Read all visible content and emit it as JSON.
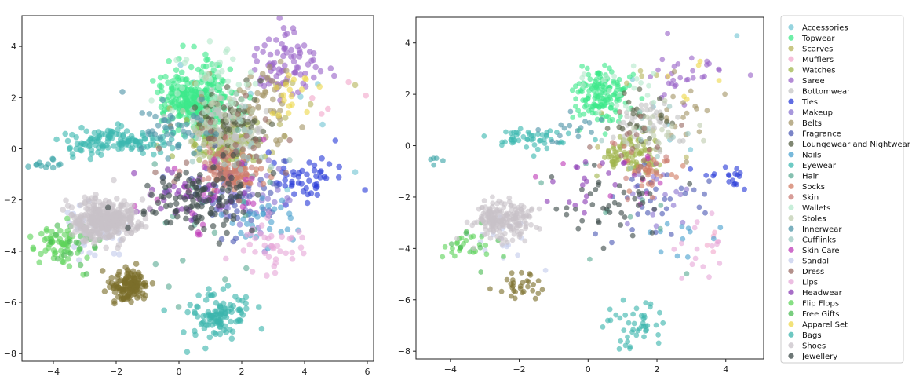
{
  "chart_data": [
    {
      "type": "scatter",
      "title": "",
      "xlabel": "",
      "ylabel": "",
      "xlim": [
        -5,
        6.2
      ],
      "ylim": [
        -8.3,
        5.2
      ],
      "xticks": [
        -4,
        -2,
        0,
        2,
        4,
        6
      ],
      "yticks": [
        -8,
        -6,
        -4,
        -2,
        0,
        2,
        4
      ],
      "grid": false,
      "legend": "none",
      "series": [
        {
          "name": "Accessories",
          "color": "#73c5d4",
          "clusters": [
            {
              "x": 2.5,
              "y": 0.5,
              "sx": 1.6,
              "sy": 1.8,
              "n": 12
            }
          ]
        },
        {
          "name": "Topwear",
          "color": "#3de88a",
          "clusters": [
            {
              "x": 0.6,
              "y": 1.9,
              "sx": 0.55,
              "sy": 0.65,
              "n": 320
            }
          ]
        },
        {
          "name": "Scarves",
          "color": "#b7b45e",
          "clusters": [
            {
              "x": 2.0,
              "y": 1.0,
              "sx": 1.4,
              "sy": 1.4,
              "n": 18
            }
          ]
        },
        {
          "name": "Mufflers",
          "color": "#f2a8cc",
          "clusters": [
            {
              "x": 5.0,
              "y": 2.2,
              "sx": 0.5,
              "sy": 0.5,
              "n": 5
            }
          ]
        },
        {
          "name": "Watches",
          "color": "#a0b54c",
          "clusters": [
            {
              "x": 1.4,
              "y": 0.3,
              "sx": 0.45,
              "sy": 0.45,
              "n": 160
            }
          ]
        },
        {
          "name": "Saree",
          "color": "#9a64c8",
          "clusters": [
            {
              "x": 3.4,
              "y": 3.4,
              "sx": 0.5,
              "sy": 0.6,
              "n": 80
            }
          ]
        },
        {
          "name": "Bottomwear",
          "color": "#c4c4c4",
          "clusters": [
            {
              "x": 1.5,
              "y": 1.0,
              "sx": 0.6,
              "sy": 0.6,
              "n": 120
            }
          ]
        },
        {
          "name": "Ties",
          "color": "#2a3bd8",
          "clusters": [
            {
              "x": 3.9,
              "y": -1.2,
              "sx": 0.6,
              "sy": 0.45,
              "n": 50
            }
          ]
        },
        {
          "name": "Makeup",
          "color": "#8a74d0",
          "clusters": [
            {
              "x": 2.2,
              "y": -1.9,
              "sx": 0.7,
              "sy": 0.7,
              "n": 40
            }
          ]
        },
        {
          "name": "Belts",
          "color": "#a49668",
          "clusters": [
            {
              "x": 2.8,
              "y": 1.8,
              "sx": 0.8,
              "sy": 0.8,
              "n": 50
            }
          ]
        },
        {
          "name": "Fragrance",
          "color": "#4d5bb4",
          "clusters": [
            {
              "x": 1.9,
              "y": -1.8,
              "sx": 0.8,
              "sy": 0.8,
              "n": 60
            }
          ]
        },
        {
          "name": "Loungewear and Nightwear",
          "color": "#555f43",
          "clusters": [
            {
              "x": 1.6,
              "y": 1.3,
              "sx": 0.6,
              "sy": 0.7,
              "n": 60
            }
          ]
        },
        {
          "name": "Nails",
          "color": "#4aa2cf",
          "clusters": [
            {
              "x": 2.6,
              "y": -2.9,
              "sx": 0.5,
              "sy": 0.5,
              "n": 30
            }
          ]
        },
        {
          "name": "Eyewear",
          "color": "#3cb8b0",
          "clusters": [
            {
              "x": -2.0,
              "y": 0.3,
              "sx": 0.9,
              "sy": 0.25,
              "n": 130
            }
          ]
        },
        {
          "name": "Hair",
          "color": "#5cab95",
          "clusters": [
            {
              "x": 0.6,
              "y": -3.0,
              "sx": 1.3,
              "sy": 1.3,
              "n": 22
            }
          ]
        },
        {
          "name": "Socks",
          "color": "#d17c64",
          "clusters": [
            {
              "x": 1.8,
              "y": -1.0,
              "sx": 0.4,
              "sy": 0.35,
              "n": 70
            }
          ]
        },
        {
          "name": "Skin",
          "color": "#c97c76",
          "clusters": [
            {
              "x": 1.5,
              "y": -0.6,
              "sx": 0.5,
              "sy": 0.5,
              "n": 40
            }
          ]
        },
        {
          "name": "Wallets",
          "color": "#b4e8cc",
          "clusters": [
            {
              "x": 1.2,
              "y": 2.4,
              "sx": 0.7,
              "sy": 0.7,
              "n": 40
            }
          ]
        },
        {
          "name": "Stoles",
          "color": "#c0cdb0",
          "clusters": [
            {
              "x": 1.6,
              "y": 0.8,
              "sx": 0.7,
              "sy": 0.7,
              "n": 40
            }
          ]
        },
        {
          "name": "Innerwear",
          "color": "#4f95a8",
          "clusters": [
            {
              "x": -0.3,
              "y": 0.9,
              "sx": 0.7,
              "sy": 0.5,
              "n": 40
            }
          ]
        },
        {
          "name": "Cufflinks",
          "color": "#9cc8c2",
          "clusters": [
            {
              "x": 2.1,
              "y": 0.0,
              "sx": 0.8,
              "sy": 0.8,
              "n": 20
            }
          ]
        },
        {
          "name": "Skin Care",
          "color": "#be3cb8",
          "clusters": [
            {
              "x": 1.0,
              "y": -1.5,
              "sx": 1.0,
              "sy": 0.8,
              "n": 25
            }
          ]
        },
        {
          "name": "Sandal",
          "color": "#c4ccec",
          "clusters": [
            {
              "x": -2.8,
              "y": -3.2,
              "sx": 0.6,
              "sy": 0.5,
              "n": 40
            }
          ]
        },
        {
          "name": "Dress",
          "color": "#9a6b64",
          "clusters": [
            {
              "x": 1.6,
              "y": 0.2,
              "sx": 0.8,
              "sy": 0.8,
              "n": 30
            }
          ]
        },
        {
          "name": "Lips",
          "color": "#e6a8d8",
          "clusters": [
            {
              "x": 3.0,
              "y": -3.8,
              "sx": 0.6,
              "sy": 0.6,
              "n": 40
            }
          ]
        },
        {
          "name": "Headwear",
          "color": "#8a3cb4",
          "clusters": [
            {
              "x": 0.0,
              "y": -1.8,
              "sx": 0.8,
              "sy": 0.6,
              "n": 40
            }
          ]
        },
        {
          "name": "Flip Flops",
          "color": "#5ed45a",
          "clusters": [
            {
              "x": -3.8,
              "y": -3.8,
              "sx": 0.4,
              "sy": 0.35,
              "n": 60
            }
          ]
        },
        {
          "name": "Free Gifts",
          "color": "#4cbc54",
          "clusters": [
            {
              "x": -3.3,
              "y": -3.6,
              "sx": 0.5,
              "sy": 0.5,
              "n": 20
            }
          ]
        },
        {
          "name": "Apparel Set",
          "color": "#eed84c",
          "clusters": [
            {
              "x": 3.8,
              "y": 2.0,
              "sx": 0.4,
              "sy": 0.5,
              "n": 18
            }
          ]
        },
        {
          "name": "Bags",
          "color": "#3cb4ac",
          "clusters": [
            {
              "x": 1.2,
              "y": -6.5,
              "sx": 0.55,
              "sy": 0.45,
              "n": 110
            }
          ]
        },
        {
          "name": "Shoes",
          "color": "#c8c2c8",
          "clusters": [
            {
              "x": -2.3,
              "y": -2.8,
              "sx": 0.55,
              "sy": 0.4,
              "n": 360
            }
          ]
        },
        {
          "name": "Jewellery",
          "color": "#3c4a48",
          "clusters": [
            {
              "x": 0.5,
              "y": -1.9,
              "sx": 0.9,
              "sy": 0.7,
              "n": 110
            }
          ]
        }
      ],
      "extra_series": [
        {
          "name": "Olive cluster",
          "color": "#7a6e2a",
          "clusters": [
            {
              "x": -1.6,
              "y": -5.3,
              "sx": 0.3,
              "sy": 0.35,
              "n": 130
            }
          ]
        },
        {
          "name": "Isolated eyewear",
          "color": "#3ca4a8",
          "clusters": [
            {
              "x": -4.2,
              "y": -0.6,
              "sx": 0.25,
              "sy": 0.1,
              "n": 12
            }
          ]
        }
      ]
    },
    {
      "type": "scatter",
      "title": "",
      "xlabel": "",
      "ylabel": "",
      "xlim": [
        -5,
        5.1
      ],
      "ylim": [
        -8.3,
        5.0
      ],
      "xticks": [
        -4,
        -2,
        0,
        2,
        4
      ],
      "yticks": [
        -8,
        -6,
        -4,
        -2,
        0,
        2,
        4
      ],
      "grid": false,
      "legend": "right-outside",
      "series": [
        {
          "name": "Accessories",
          "color": "#73c5d4",
          "clusters": [
            {
              "x": 2.2,
              "y": 0.5,
              "sx": 1.4,
              "sy": 1.6,
              "n": 6
            }
          ]
        },
        {
          "name": "Topwear",
          "color": "#3de88a",
          "clusters": [
            {
              "x": 0.4,
              "y": 1.9,
              "sx": 0.45,
              "sy": 0.55,
              "n": 150
            }
          ]
        },
        {
          "name": "Scarves",
          "color": "#b7b45e",
          "clusters": [
            {
              "x": 1.8,
              "y": 1.0,
              "sx": 1.2,
              "sy": 1.2,
              "n": 8
            }
          ]
        },
        {
          "name": "Mufflers",
          "color": "#f2a8cc",
          "clusters": [
            {
              "x": 3.8,
              "y": -3.6,
              "sx": 0.4,
              "sy": 0.5,
              "n": 4
            }
          ]
        },
        {
          "name": "Watches",
          "color": "#a0b54c",
          "clusters": [
            {
              "x": 1.2,
              "y": -0.3,
              "sx": 0.4,
              "sy": 0.4,
              "n": 90
            }
          ]
        },
        {
          "name": "Saree",
          "color": "#9a64c8",
          "clusters": [
            {
              "x": 2.8,
              "y": 2.8,
              "sx": 0.6,
              "sy": 0.6,
              "n": 30
            }
          ]
        },
        {
          "name": "Bottomwear",
          "color": "#c4c4c4",
          "clusters": [
            {
              "x": 1.6,
              "y": 0.8,
              "sx": 0.5,
              "sy": 0.5,
              "n": 50
            }
          ]
        },
        {
          "name": "Ties",
          "color": "#2a3bd8",
          "clusters": [
            {
              "x": 4.1,
              "y": -1.2,
              "sx": 0.5,
              "sy": 0.3,
              "n": 18
            }
          ]
        },
        {
          "name": "Makeup",
          "color": "#8a74d0",
          "clusters": [
            {
              "x": 2.2,
              "y": -2.0,
              "sx": 0.6,
              "sy": 0.6,
              "n": 20
            }
          ]
        },
        {
          "name": "Belts",
          "color": "#a49668",
          "clusters": [
            {
              "x": 2.5,
              "y": 1.4,
              "sx": 0.7,
              "sy": 0.7,
              "n": 20
            }
          ]
        },
        {
          "name": "Fragrance",
          "color": "#4d5bb4",
          "clusters": [
            {
              "x": 1.8,
              "y": -2.0,
              "sx": 0.8,
              "sy": 0.7,
              "n": 30
            }
          ]
        },
        {
          "name": "Loungewear and Nightwear",
          "color": "#555f43",
          "clusters": [
            {
              "x": 1.4,
              "y": 1.0,
              "sx": 0.6,
              "sy": 0.7,
              "n": 25
            }
          ]
        },
        {
          "name": "Nails",
          "color": "#4aa2cf",
          "clusters": [
            {
              "x": 2.7,
              "y": -3.4,
              "sx": 0.5,
              "sy": 0.5,
              "n": 12
            }
          ]
        },
        {
          "name": "Eyewear",
          "color": "#3cb8b0",
          "clusters": [
            {
              "x": -1.7,
              "y": 0.3,
              "sx": 0.6,
              "sy": 0.2,
              "n": 50
            }
          ]
        },
        {
          "name": "Hair",
          "color": "#5cab95",
          "clusters": [
            {
              "x": 0.6,
              "y": -3.2,
              "sx": 1.2,
              "sy": 1.2,
              "n": 10
            }
          ]
        },
        {
          "name": "Socks",
          "color": "#d17c64",
          "clusters": [
            {
              "x": 1.7,
              "y": -1.0,
              "sx": 0.4,
              "sy": 0.35,
              "n": 30
            }
          ]
        },
        {
          "name": "Skin",
          "color": "#c97c76",
          "clusters": [
            {
              "x": 1.4,
              "y": -0.8,
              "sx": 0.5,
              "sy": 0.5,
              "n": 15
            }
          ]
        },
        {
          "name": "Wallets",
          "color": "#b4e8cc",
          "clusters": [
            {
              "x": 1.0,
              "y": 2.2,
              "sx": 0.6,
              "sy": 0.6,
              "n": 20
            }
          ]
        },
        {
          "name": "Stoles",
          "color": "#c0cdb0",
          "clusters": [
            {
              "x": 1.6,
              "y": 0.8,
              "sx": 0.6,
              "sy": 0.6,
              "n": 20
            }
          ]
        },
        {
          "name": "Innerwear",
          "color": "#4f95a8",
          "clusters": [
            {
              "x": -0.3,
              "y": 0.7,
              "sx": 0.6,
              "sy": 0.4,
              "n": 15
            }
          ]
        },
        {
          "name": "Cufflinks",
          "color": "#9cc8c2",
          "clusters": [
            {
              "x": 2.0,
              "y": 0.0,
              "sx": 0.8,
              "sy": 0.8,
              "n": 10
            }
          ]
        },
        {
          "name": "Skin Care",
          "color": "#be3cb8",
          "clusters": [
            {
              "x": 1.0,
              "y": -1.6,
              "sx": 0.9,
              "sy": 0.7,
              "n": 10
            }
          ]
        },
        {
          "name": "Sandal",
          "color": "#c4ccec",
          "clusters": [
            {
              "x": -2.6,
              "y": -3.4,
              "sx": 0.6,
              "sy": 0.5,
              "n": 18
            }
          ]
        },
        {
          "name": "Dress",
          "color": "#9a6b64",
          "clusters": [
            {
              "x": 1.6,
              "y": 0.0,
              "sx": 0.8,
              "sy": 0.8,
              "n": 12
            }
          ]
        },
        {
          "name": "Lips",
          "color": "#e6a8d8",
          "clusters": [
            {
              "x": 3.3,
              "y": -4.0,
              "sx": 0.5,
              "sy": 0.6,
              "n": 16
            }
          ]
        },
        {
          "name": "Headwear",
          "color": "#8a3cb4",
          "clusters": [
            {
              "x": 0.0,
              "y": -1.5,
              "sx": 0.8,
              "sy": 0.6,
              "n": 18
            }
          ]
        },
        {
          "name": "Flip Flops",
          "color": "#5ed45a",
          "clusters": [
            {
              "x": -3.7,
              "y": -3.9,
              "sx": 0.4,
              "sy": 0.35,
              "n": 25
            }
          ]
        },
        {
          "name": "Free Gifts",
          "color": "#4cbc54",
          "clusters": [
            {
              "x": -3.2,
              "y": -3.5,
              "sx": 0.5,
              "sy": 0.5,
              "n": 8
            }
          ]
        },
        {
          "name": "Apparel Set",
          "color": "#eed84c",
          "clusters": [
            {
              "x": 3.1,
              "y": 2.4,
              "sx": 0.4,
              "sy": 0.5,
              "n": 6
            }
          ]
        },
        {
          "name": "Bags",
          "color": "#3cb4ac",
          "clusters": [
            {
              "x": 1.3,
              "y": -7.0,
              "sx": 0.5,
              "sy": 0.4,
              "n": 45
            }
          ]
        },
        {
          "name": "Shoes",
          "color": "#c8c2c8",
          "clusters": [
            {
              "x": -2.5,
              "y": -2.9,
              "sx": 0.45,
              "sy": 0.35,
              "n": 200
            }
          ]
        },
        {
          "name": "Jewellery",
          "color": "#3c4a48",
          "clusters": [
            {
              "x": 0.7,
              "y": -2.2,
              "sx": 0.9,
              "sy": 0.7,
              "n": 40
            }
          ]
        }
      ],
      "extra_series": [
        {
          "name": "Olive cluster",
          "color": "#7a6e2a",
          "clusters": [
            {
              "x": -1.9,
              "y": -5.5,
              "sx": 0.3,
              "sy": 0.3,
              "n": 30
            }
          ]
        },
        {
          "name": "Isolated eyewear",
          "color": "#3ca4a8",
          "clusters": [
            {
              "x": -4.4,
              "y": -0.6,
              "sx": 0.25,
              "sy": 0.1,
              "n": 5
            }
          ]
        }
      ]
    }
  ]
}
